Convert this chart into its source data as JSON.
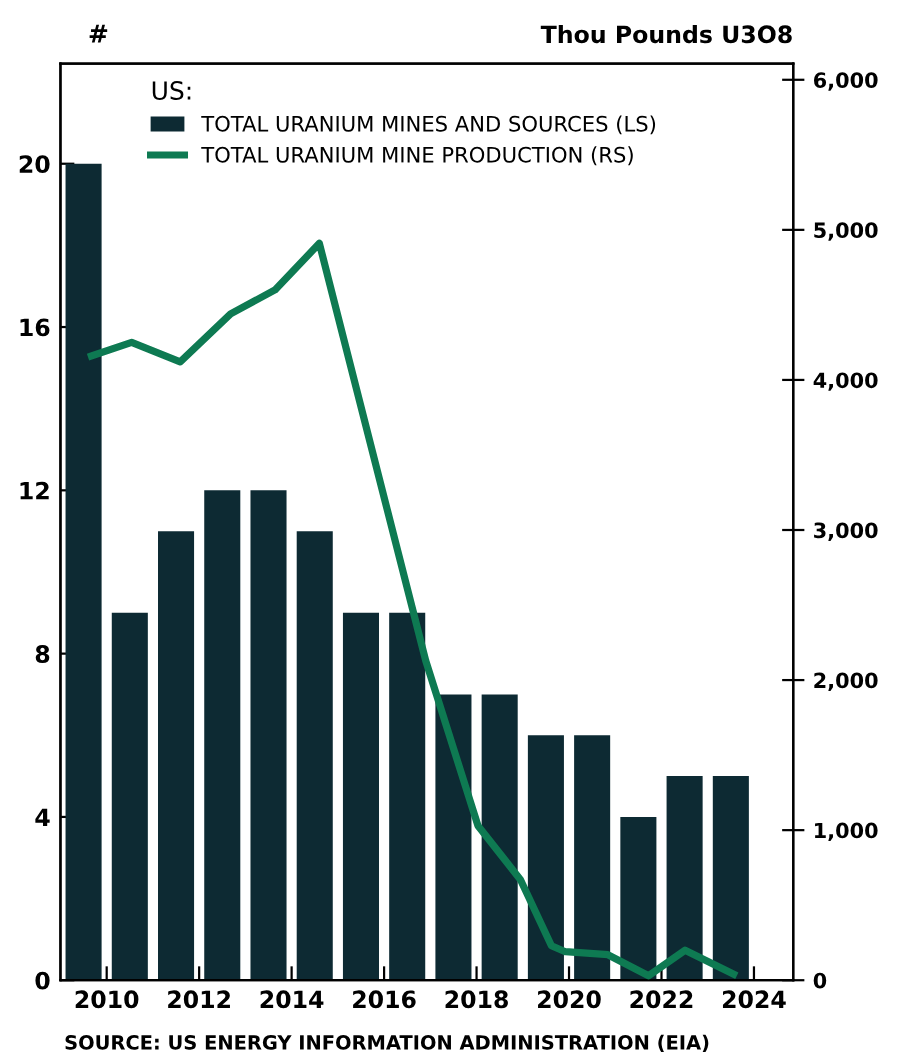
{
  "chart_data": {
    "type": "bar",
    "ylabel": "#",
    "y2label": "Thou Pounds U3O8",
    "legend_title": "US:",
    "legend": "top left",
    "grid": false,
    "xlim": [
      2009.0,
      2024.85
    ],
    "xticks": [
      2010,
      2012,
      2014,
      2016,
      2018,
      2020,
      2022,
      2024
    ],
    "ylim": [
      0,
      22.45
    ],
    "yticks": [
      0,
      4,
      8,
      12,
      16,
      20
    ],
    "y2lim": [
      0,
      6107
    ],
    "y2ticks": [
      0,
      {
        "value": 1000,
        "label": "1,000"
      },
      {
        "value": 2000,
        "label": "2,000"
      },
      {
        "value": 3000,
        "label": "3,000"
      },
      {
        "value": 4000,
        "label": "4,000"
      },
      {
        "value": 5000,
        "label": "5,000"
      },
      {
        "value": 6000,
        "label": "6,000"
      }
    ],
    "series": [
      {
        "name": "TOTAL URANIUM MINES AND SOURCES (LS)",
        "color": "#0d2a33",
        "x": [
          2009.5,
          2010.5,
          2011.5,
          2012.5,
          2013.5,
          2014.5,
          2015.5,
          2016.5,
          2017.5,
          2018.5,
          2019.5,
          2020.5,
          2021.5,
          2022.5,
          2023.5
        ],
        "values": [
          20,
          9,
          11,
          12,
          12,
          11,
          9,
          9,
          7,
          7,
          6,
          6,
          4,
          5,
          5
        ]
      },
      {
        "name": "TOTAL URANIUM MINE PRODUCTION (RS)",
        "type": "line",
        "axis": "y2",
        "color": "#0e7a52",
        "line_style": "solid",
        "x": [
          2009.67,
          2010.54,
          2011.59,
          2012.68,
          2013.64,
          2014.6,
          2016.9,
          2018.03,
          2018.95,
          2019.62,
          2019.92,
          2020.84,
          2021.72,
          2022.51,
          2023.56
        ],
        "values": [
          4160,
          4250,
          4120,
          4440,
          4600,
          4910,
          2130,
          1030,
          670,
          230,
          190,
          170,
          30,
          200,
          40
        ]
      }
    ],
    "annotations": [
      "SOURCE: US ENERGY INFORMATION ADMINISTRATION (EIA)"
    ]
  }
}
